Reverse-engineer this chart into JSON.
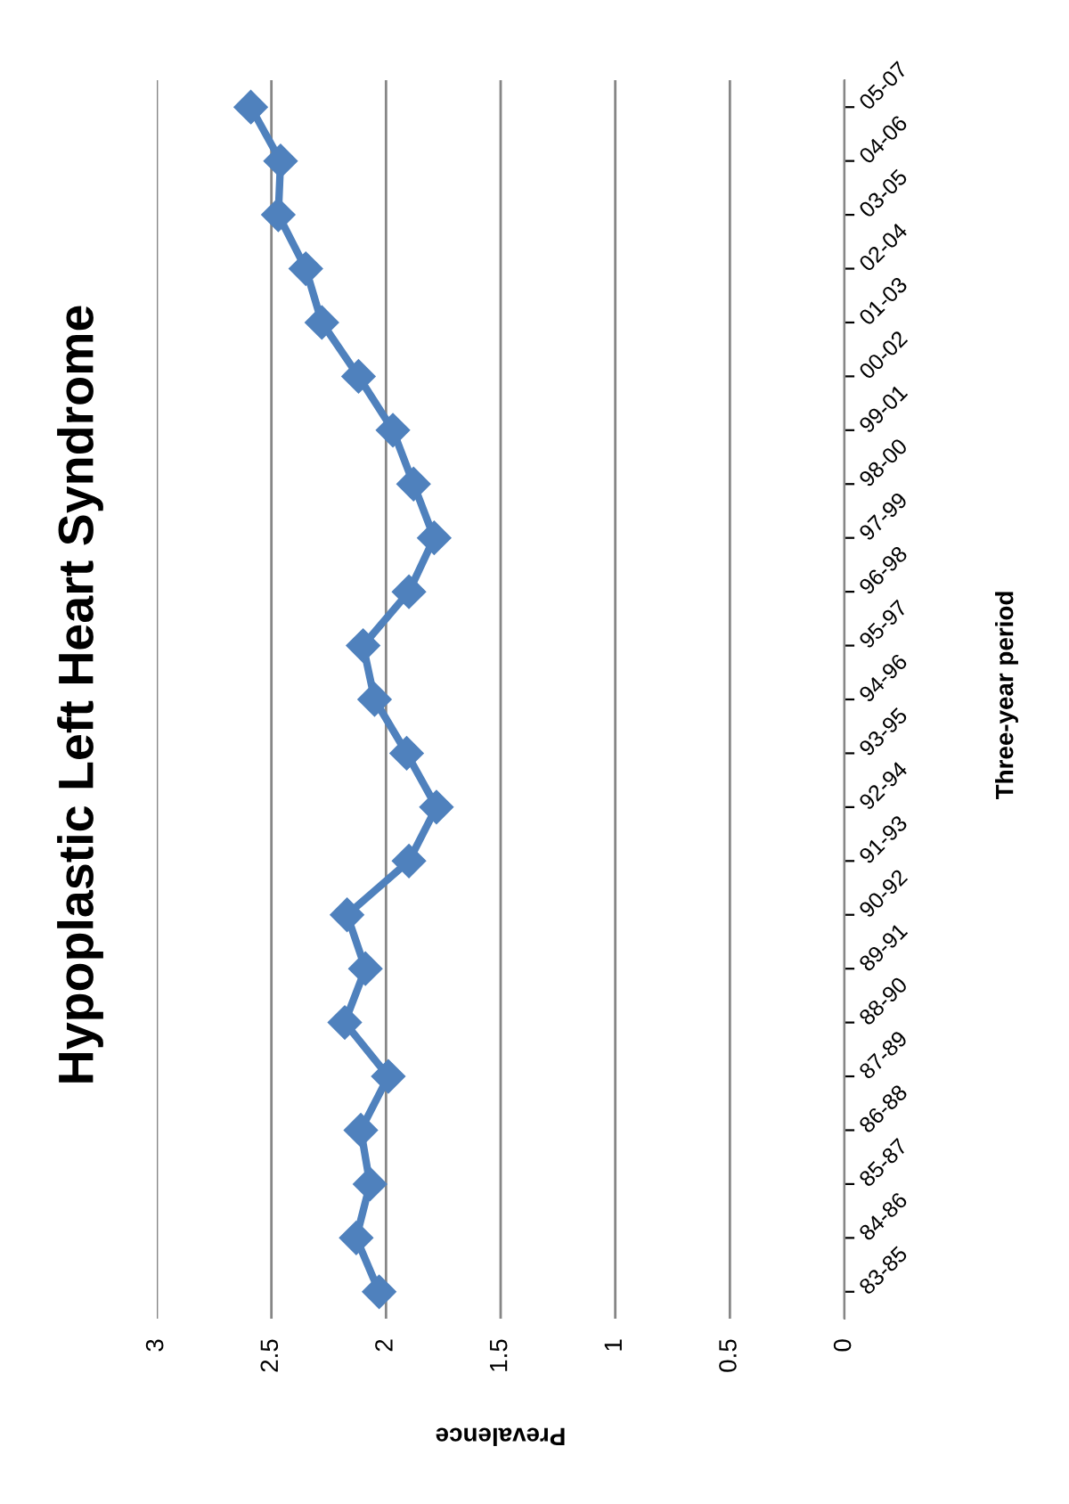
{
  "chart_data": {
    "type": "line",
    "orientation": "horizontal",
    "title": "Hypoplastic Left Heart Syndrome",
    "xlabel": "Prevalence",
    "ylabel": "Three-year period",
    "categories": [
      "05-07",
      "04-06",
      "03-05",
      "02-04",
      "01-03",
      "00-02",
      "99-01",
      "98-00",
      "97-99",
      "96-98",
      "95-97",
      "94-96",
      "93-95",
      "92-94",
      "91-93",
      "90-92",
      "89-91",
      "88-90",
      "87-89",
      "86-88",
      "85-87",
      "84-86",
      "83-85"
    ],
    "series": [
      {
        "color": "#4f81bd",
        "values": [
          2.59,
          2.46,
          2.47,
          2.35,
          2.28,
          2.12,
          1.97,
          1.88,
          1.79,
          1.9,
          2.1,
          2.05,
          1.91,
          1.78,
          1.9,
          2.17,
          2.09,
          2.18,
          1.99,
          2.11,
          2.07,
          2.13,
          2.03
        ]
      }
    ],
    "xlim": [
      3,
      0
    ],
    "xticks": [
      3,
      2.5,
      2,
      1.5,
      1,
      0.5,
      0
    ],
    "grid": "x",
    "marker": "diamond",
    "line_style": "solid",
    "legend": false
  }
}
